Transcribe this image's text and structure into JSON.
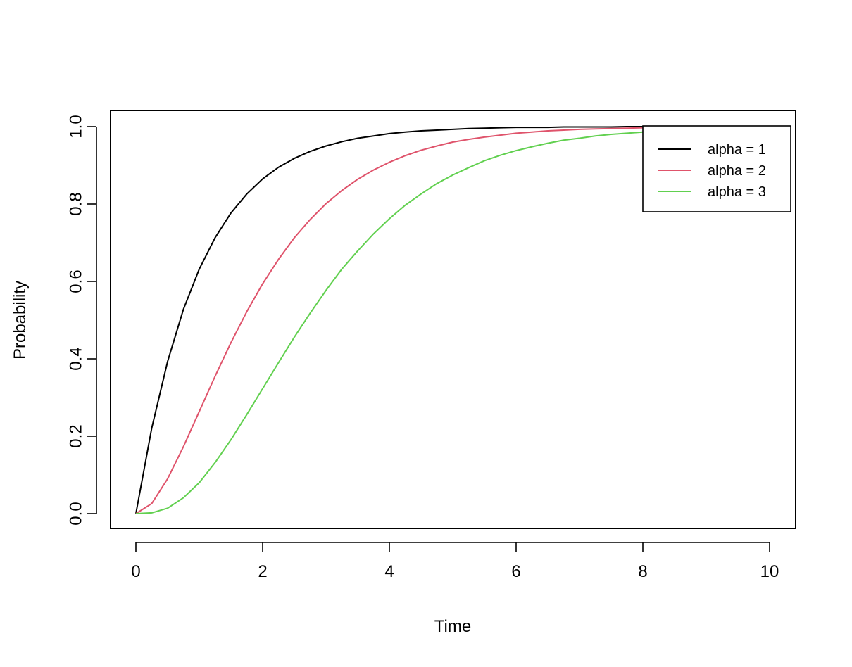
{
  "chart_data": {
    "type": "line",
    "title": "",
    "xlabel": "Time",
    "ylabel": "Probability",
    "xlim": [
      0,
      10
    ],
    "ylim": [
      0,
      1
    ],
    "x_ticks": [
      0,
      2,
      4,
      6,
      8,
      10
    ],
    "x_tick_labels": [
      "0",
      "2",
      "4",
      "6",
      "8",
      "10"
    ],
    "y_ticks": [
      0,
      0.2,
      0.4,
      0.6,
      0.8,
      1.0
    ],
    "y_tick_labels": [
      "0.0",
      "0.2",
      "0.4",
      "0.6",
      "0.8",
      "1.0"
    ],
    "grid": false,
    "legend_position": "top-right",
    "x": [
      0,
      0.25,
      0.5,
      0.75,
      1,
      1.25,
      1.5,
      1.75,
      2,
      2.25,
      2.5,
      2.75,
      3,
      3.25,
      3.5,
      3.75,
      4,
      4.25,
      4.5,
      4.75,
      5,
      5.25,
      5.5,
      5.75,
      6,
      6.25,
      6.5,
      6.75,
      7,
      7.25,
      7.5,
      7.75,
      8,
      8.25,
      8.5,
      8.75,
      9,
      9.25,
      9.5,
      9.75,
      10
    ],
    "series": [
      {
        "name": "alpha = 1",
        "color": "#000000",
        "values": [
          0,
          0.221,
          0.393,
          0.528,
          0.632,
          0.713,
          0.777,
          0.826,
          0.865,
          0.895,
          0.918,
          0.936,
          0.95,
          0.961,
          0.97,
          0.976,
          0.982,
          0.986,
          0.989,
          0.991,
          0.993,
          0.995,
          0.996,
          0.997,
          0.998,
          0.998,
          0.998,
          0.999,
          0.999,
          0.999,
          0.999,
          1.0,
          1.0,
          1.0,
          1.0,
          1.0,
          1.0,
          1.0,
          1.0,
          1.0,
          1.0
        ]
      },
      {
        "name": "alpha = 2",
        "color": "#DF536B",
        "values": [
          0,
          0.026,
          0.09,
          0.173,
          0.264,
          0.355,
          0.442,
          0.522,
          0.594,
          0.657,
          0.713,
          0.76,
          0.801,
          0.835,
          0.864,
          0.888,
          0.908,
          0.925,
          0.939,
          0.95,
          0.96,
          0.967,
          0.973,
          0.978,
          0.983,
          0.986,
          0.989,
          0.991,
          0.993,
          0.994,
          0.995,
          0.996,
          0.997,
          0.998,
          0.998,
          0.998,
          0.999,
          0.999,
          0.999,
          0.999,
          1.0
        ]
      },
      {
        "name": "alpha = 3",
        "color": "#61D04F",
        "values": [
          0,
          0.002,
          0.014,
          0.041,
          0.08,
          0.132,
          0.191,
          0.256,
          0.323,
          0.39,
          0.456,
          0.518,
          0.577,
          0.632,
          0.679,
          0.723,
          0.762,
          0.797,
          0.826,
          0.853,
          0.875,
          0.894,
          0.912,
          0.926,
          0.938,
          0.948,
          0.957,
          0.965,
          0.97,
          0.976,
          0.98,
          0.983,
          0.986,
          0.988,
          0.99,
          0.992,
          0.994,
          0.995,
          0.996,
          0.996,
          0.997
        ]
      }
    ]
  }
}
